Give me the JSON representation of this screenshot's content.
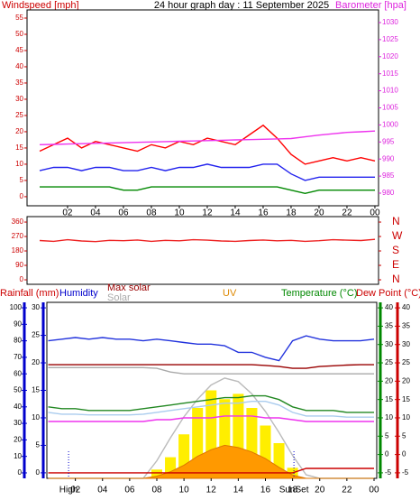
{
  "chart_data": [
    {
      "type": "line",
      "title": "24 hour graph day : 11 September 2025",
      "ylabel": "Windspeed [mph]",
      "ycolor": "#cc0000",
      "y2label": "Barometer [hpa]",
      "y2color": "#dd22dd",
      "x": [
        0,
        1,
        2,
        3,
        4,
        5,
        6,
        7,
        8,
        9,
        10,
        11,
        12,
        13,
        14,
        15,
        16,
        17,
        18,
        19,
        20,
        21,
        22,
        23,
        24
      ],
      "xlim": [
        -0.9,
        24.26
      ],
      "xticks": [
        {
          "value": 2,
          "label": "02"
        },
        {
          "value": 4,
          "label": "04"
        },
        {
          "value": 6,
          "label": "06"
        },
        {
          "value": 8,
          "label": "08"
        },
        10,
        12,
        14,
        16,
        18,
        20,
        22,
        {
          "value": 24,
          "label": "00"
        }
      ],
      "ylim": [
        -2.8,
        57.5
      ],
      "yticks": [
        0,
        5,
        10,
        15,
        20,
        25,
        30,
        35,
        40,
        45,
        50,
        55
      ],
      "y2lim": [
        976.3,
        1033.7
      ],
      "y2ticks": [
        980,
        985,
        990,
        995,
        1000,
        1005,
        1010,
        1015,
        1020,
        1025,
        1030
      ],
      "series": [
        {
          "color": "#ff0000",
          "values": [
            14,
            16,
            18,
            15,
            17,
            16,
            15,
            14,
            16,
            15,
            17,
            16,
            18,
            17,
            16,
            19,
            22,
            18,
            13,
            10,
            11,
            12,
            11,
            12,
            11
          ]
        },
        {
          "color": "#2222ee",
          "values": [
            8,
            9,
            9,
            8,
            9,
            9,
            8,
            8,
            9,
            8,
            9,
            9,
            10,
            9,
            9,
            9,
            10,
            10,
            7,
            5,
            6,
            6,
            6,
            6,
            6
          ]
        },
        {
          "color": "#008800",
          "values": [
            3,
            3,
            3,
            3,
            3,
            3,
            2,
            2,
            3,
            3,
            3,
            3,
            3,
            3,
            3,
            3,
            3,
            3,
            2,
            1,
            2,
            2,
            2,
            2,
            2
          ]
        },
        {
          "color": "#ee33ee",
          "axis": "y2",
          "values": [
            994.2,
            994.3,
            994.4,
            994.5,
            994.6,
            994.7,
            994.8,
            994.9,
            995,
            995.1,
            995.2,
            995.3,
            995.4,
            995.5,
            995.6,
            995.7,
            995.8,
            995.9,
            996,
            996.5,
            997,
            997.4,
            997.8,
            998,
            998.2
          ]
        }
      ]
    },
    {
      "type": "line",
      "ycolor": "#cc0000",
      "y2color": "#cc0000",
      "x": [
        0,
        1,
        2,
        3,
        4,
        5,
        6,
        7,
        8,
        9,
        10,
        11,
        12,
        13,
        14,
        15,
        16,
        17,
        18,
        19,
        20,
        21,
        22,
        23,
        24
      ],
      "xlim": [
        -0.9,
        24.26
      ],
      "ylim": [
        -28,
        394
      ],
      "yticks": [
        0,
        90,
        180,
        270,
        360
      ],
      "y2lim": [
        -28,
        394
      ],
      "y2ticks": [
        {
          "value": 0,
          "label": "N"
        },
        {
          "value": 90,
          "label": "E"
        },
        {
          "value": 180,
          "label": "S"
        },
        {
          "value": 270,
          "label": "W"
        },
        {
          "value": 360,
          "label": "N"
        }
      ],
      "series": [
        {
          "color": "#ee2222",
          "values": [
            245,
            240,
            250,
            242,
            238,
            246,
            244,
            248,
            240,
            246,
            243,
            250,
            247,
            242,
            240,
            245,
            248,
            243,
            246,
            240,
            244,
            250,
            247,
            245,
            252
          ]
        }
      ]
    },
    {
      "type": "line",
      "x": [
        0,
        1,
        2,
        3,
        4,
        5,
        6,
        7,
        8,
        9,
        10,
        11,
        12,
        13,
        14,
        15,
        16,
        17,
        18,
        19,
        20,
        21,
        22,
        23,
        24
      ],
      "xlim": [
        -0.1,
        24.2
      ],
      "xticks": [
        {
          "value": 2,
          "label": "02"
        },
        {
          "value": 4,
          "label": "04"
        },
        {
          "value": 6,
          "label": "06"
        },
        {
          "value": 8,
          "label": "08"
        },
        10,
        12,
        14,
        16,
        18,
        20,
        22,
        {
          "value": 24,
          "label": "00"
        }
      ],
      "axes": {
        "humidity": {
          "label": "Humidity",
          "label_color": "#0000cc",
          "color": "#0000cc",
          "lim": [
            -3.3,
            103.3
          ],
          "ticks": [
            0,
            10,
            20,
            30,
            40,
            50,
            60,
            70,
            80,
            90,
            100
          ]
        },
        "rain": {
          "label": "Rainfall (mm)",
          "label_color": "#cc0000",
          "color": "#0000cc",
          "lim": [
            -1,
            31
          ],
          "ticks": [
            0,
            5,
            10,
            15,
            20,
            25,
            30
          ]
        },
        "temp": {
          "label": "Temperature (°C)",
          "label_color": "#008800",
          "color": "#008800",
          "lim": [
            -6.5,
            41.5
          ],
          "ticks": [
            -5,
            0,
            5,
            10,
            15,
            20,
            25,
            30,
            35,
            40
          ]
        },
        "dew": {
          "label": "Dew Point (°C)",
          "label_color": "#cc0000",
          "color": "#cc0000",
          "lim": [
            -6.5,
            41.5
          ],
          "ticks": [
            -5,
            0,
            5,
            10,
            15,
            20,
            25,
            30,
            35,
            40
          ]
        },
        "solar": {
          "lim": [
            0,
            1000
          ]
        },
        "uv": {
          "lim": [
            0,
            16
          ]
        }
      },
      "series": [
        {
          "name": "Solar",
          "color": "#ffee00",
          "label_color": "#aaaaaa",
          "axis": "solar",
          "style": "bar",
          "values": [
            0,
            0,
            0,
            0,
            0,
            0,
            0,
            0,
            50,
            120,
            250,
            400,
            500,
            450,
            480,
            400,
            300,
            200,
            60,
            0,
            0,
            0,
            0,
            0,
            0
          ]
        },
        {
          "name": "Max solar",
          "color": "#bbbbbb",
          "label_color": "#990000",
          "axis": "solar",
          "style": "line",
          "values": [
            0,
            0,
            0,
            0,
            0,
            0,
            0,
            0,
            100,
            230,
            350,
            450,
            530,
            570,
            550,
            480,
            380,
            260,
            130,
            20,
            0,
            0,
            0,
            0,
            0
          ]
        },
        {
          "name": "UV",
          "color": "#ff9900",
          "label_color": "#dd8800",
          "axis": "uv",
          "style": "area",
          "values": [
            0,
            0,
            0,
            0,
            0,
            0,
            0,
            0,
            0.2,
            0.6,
            1.2,
            2,
            2.6,
            3,
            2.8,
            2.4,
            1.8,
            1,
            0.3,
            0,
            0,
            0,
            0,
            0,
            0
          ]
        },
        {
          "color": "#aaaaaa",
          "axis": "temp",
          "style": "line",
          "values": [
            23.7,
            23.7,
            23.7,
            23.7,
            23.7,
            23.7,
            23.7,
            23.7,
            23.5,
            22.5,
            22,
            22,
            22,
            22,
            22,
            22,
            22,
            22,
            22,
            22,
            22,
            22,
            22,
            22,
            22
          ]
        },
        {
          "color": "#990000",
          "axis": "temp",
          "style": "line",
          "values": [
            24.5,
            24.5,
            24.5,
            24.5,
            24.5,
            24.5,
            24.5,
            24.5,
            24.5,
            24.5,
            24.5,
            24.5,
            24.5,
            24.5,
            24.5,
            24.5,
            24.3,
            24,
            23.5,
            23.5,
            24,
            24.2,
            24.4,
            24.5,
            24.5
          ]
        },
        {
          "color": "#2233dd",
          "axis": "humidity",
          "style": "line",
          "values": [
            80,
            81,
            82,
            81,
            82,
            81,
            81,
            80,
            81,
            80,
            79,
            78,
            78,
            77,
            73,
            73,
            70,
            68,
            80,
            83,
            81,
            80,
            80,
            80,
            81
          ]
        },
        {
          "color": "#aaccee",
          "axis": "temp",
          "style": "line",
          "values": [
            11.5,
            11,
            11,
            10.8,
            10.8,
            10.8,
            10.8,
            11,
            11.5,
            12,
            12.5,
            13,
            13.5,
            14,
            14,
            14.5,
            14.5,
            13.5,
            11.5,
            10.5,
            10.5,
            10.5,
            10.2,
            10.2,
            10.2
          ]
        },
        {
          "color": "#228822",
          "axis": "temp",
          "style": "line",
          "values": [
            13,
            12.5,
            12.5,
            12,
            12,
            12,
            12,
            12.5,
            13,
            13.5,
            14,
            14.5,
            15,
            15.5,
            15.5,
            16,
            16,
            15,
            13,
            12,
            12,
            12,
            11.5,
            11.5,
            11.5
          ]
        },
        {
          "color": "#ee33ee",
          "axis": "dew",
          "style": "line",
          "values": [
            9,
            9,
            9,
            9,
            9,
            9,
            9,
            9,
            9.5,
            9.5,
            10,
            10,
            10,
            10.5,
            10.5,
            10.5,
            10,
            10,
            9.5,
            9,
            9,
            9,
            9,
            9,
            9
          ]
        },
        {
          "color": "#cc0000",
          "axis": "rain",
          "style": "line",
          "values": [
            0,
            0,
            0,
            0,
            0,
            0,
            0,
            0,
            0,
            0,
            0,
            0,
            0,
            0,
            0,
            0,
            0,
            0,
            0,
            0.8,
            0.8,
            0.8,
            0.8,
            0.8,
            0.8
          ]
        }
      ],
      "annotations": [
        {
          "text": "High",
          "x": 1.5
        },
        {
          "text": "SunSet",
          "x": 18.1
        }
      ]
    }
  ]
}
